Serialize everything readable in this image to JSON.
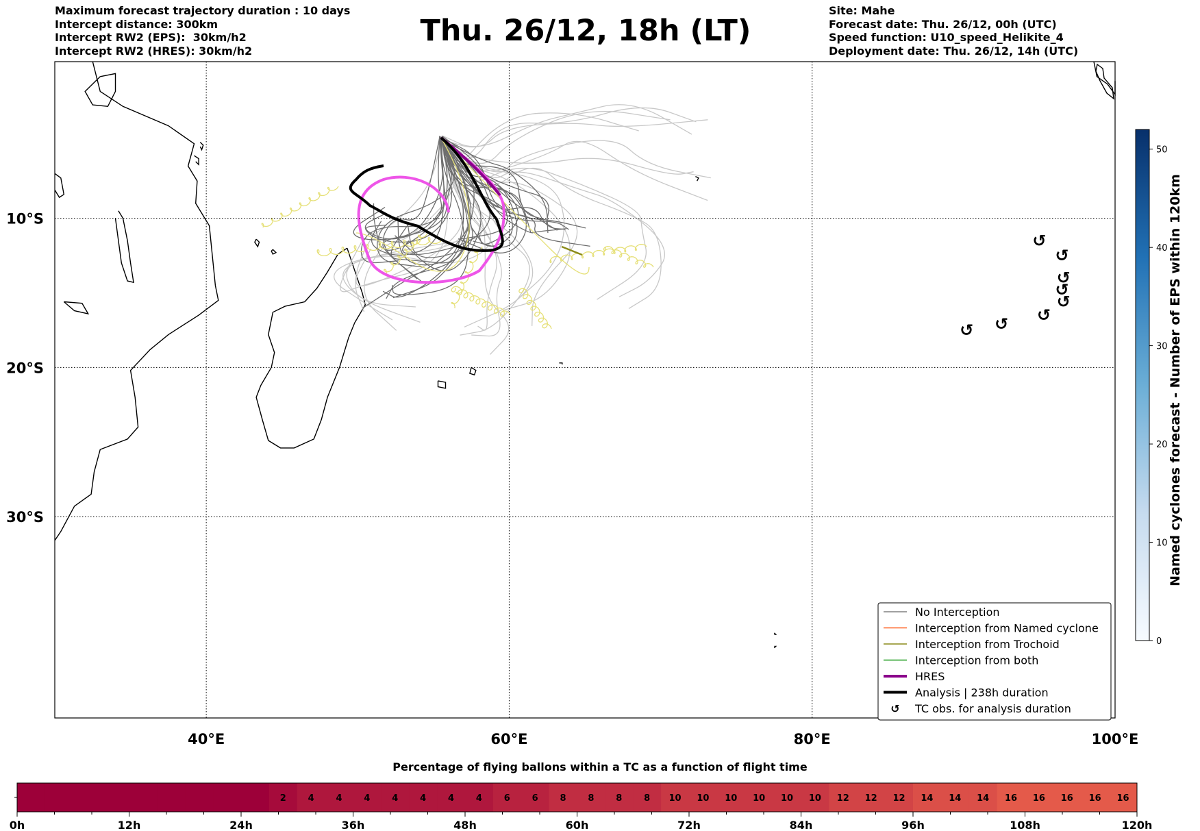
{
  "header": {
    "left_lines": [
      "Maximum forecast trajectory duration : 10 days",
      "Intercept distance: 300km",
      "Intercept RW2 (EPS):  30km/h2",
      "Intercept RW2 (HRES): 30km/h2"
    ],
    "title": "Thu. 26/12, 18h (LT)",
    "right_lines": [
      "Site: Mahe",
      "Forecast date: Thu. 26/12, 00h (UTC)",
      "Speed function: U10_speed_Helikite_4",
      "Deployment date: Thu. 26/12, 14h (UTC)"
    ]
  },
  "map": {
    "lon_range": [
      30,
      100
    ],
    "lat_range": [
      -43.5,
      0.5
    ],
    "lon_ticks": [
      {
        "value": 40,
        "label": "40°E"
      },
      {
        "value": 60,
        "label": "60°E"
      },
      {
        "value": 80,
        "label": "80°E"
      },
      {
        "value": 100,
        "label": "100°E"
      }
    ],
    "lat_ticks": [
      {
        "value": -10,
        "label": "10°S"
      },
      {
        "value": -20,
        "label": "20°S"
      },
      {
        "value": -30,
        "label": "30°S"
      }
    ],
    "site": {
      "name": "Mahe",
      "lon": 55.5,
      "lat": -4.6
    },
    "tc_obs": [
      {
        "lon": 90.2,
        "lat": -17.5
      },
      {
        "lon": 92.5,
        "lat": -17.1
      },
      {
        "lon": 95.3,
        "lat": -16.5
      },
      {
        "lon": 95.0,
        "lat": -11.5
      },
      {
        "lon": 96.5,
        "lat": -12.5
      },
      {
        "lon": 96.6,
        "lat": -14.0
      },
      {
        "lon": 96.5,
        "lat": -14.8
      },
      {
        "lon": 96.6,
        "lat": -15.6
      }
    ]
  },
  "legend": {
    "items": [
      {
        "label": "No Interception",
        "type": "line",
        "color": "#808080",
        "width": 1.5
      },
      {
        "label": "Interception from Named cyclone",
        "type": "line",
        "color": "#ff6020",
        "width": 1.5
      },
      {
        "label": "Interception from Trochoid",
        "type": "line",
        "color": "#8b8b1a",
        "width": 1.5
      },
      {
        "label": "Interception from both",
        "type": "line",
        "color": "#1a9a1a",
        "width": 1.5
      },
      {
        "label": "HRES",
        "type": "line",
        "color": "#8b008b",
        "width": 4
      },
      {
        "label": "Analysis | 238h duration",
        "type": "line",
        "color": "#000000",
        "width": 4
      },
      {
        "label": "TC obs. for analysis duration",
        "type": "marker",
        "color": "#000000",
        "symbol": "↺"
      }
    ]
  },
  "colorbar": {
    "label": "Named cyclones forecast - Number of EPS within 120km",
    "min": 0,
    "max": 52,
    "ticks": [
      0,
      10,
      20,
      30,
      40,
      50
    ],
    "colors": [
      "#f7fbff",
      "#c6dbef",
      "#6baed6",
      "#2171b5",
      "#08306b"
    ]
  },
  "chart_data": {
    "type": "heatmap",
    "title": "Percentage of flying ballons within a TC as a function of flight time",
    "x_ticks": [
      "0h",
      "12h",
      "24h",
      "36h",
      "48h",
      "60h",
      "72h",
      "84h",
      "96h",
      "108h",
      "120h"
    ],
    "x_range_hours": [
      0,
      120
    ],
    "bin_hours": 3,
    "values": [
      0,
      0,
      0,
      0,
      0,
      0,
      0,
      0,
      0,
      2,
      4,
      4,
      4,
      4,
      4,
      4,
      4,
      6,
      6,
      8,
      8,
      8,
      8,
      10,
      10,
      10,
      10,
      10,
      10,
      12,
      12,
      12,
      14,
      14,
      14,
      16,
      16,
      16,
      16,
      16
    ],
    "color_min": "#9d0039",
    "color_max": "#e45a4a"
  }
}
